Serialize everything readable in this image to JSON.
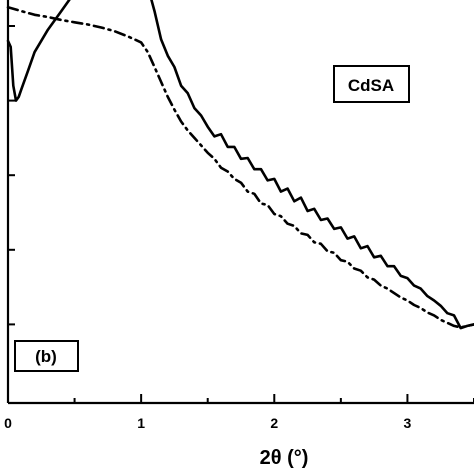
{
  "chart_data": {
    "type": "line",
    "xlabel": "2θ (°)",
    "ylabel": "",
    "xlim": [
      0,
      3.5
    ],
    "y_log": true,
    "ylim_decades": [
      0,
      5
    ],
    "x_ticks": [
      0,
      1,
      2,
      3
    ],
    "x_tick_labels": [
      "0",
      "1",
      "2",
      "3"
    ],
    "grid": false,
    "annotations": {
      "sample": "CdSA",
      "panel": "(b)"
    },
    "series": [
      {
        "style": "solid",
        "x": [
          0.0,
          0.02,
          0.04,
          0.06,
          0.08,
          0.1,
          0.15,
          0.2,
          0.3,
          0.4,
          0.5,
          0.6,
          0.7,
          0.8,
          0.85,
          0.9,
          0.95,
          1.0,
          1.05,
          1.1,
          1.15,
          1.2,
          1.25,
          1.3,
          1.35,
          1.4,
          1.45,
          1.5,
          1.55,
          1.6,
          1.65,
          1.7,
          1.75,
          1.8,
          1.85,
          1.9,
          1.95,
          2.0,
          2.05,
          2.1,
          2.15,
          2.2,
          2.25,
          2.3,
          2.35,
          2.4,
          2.45,
          2.5,
          2.55,
          2.6,
          2.65,
          2.7,
          2.75,
          2.8,
          2.85,
          2.9,
          2.95,
          3.0,
          3.05,
          3.1,
          3.15,
          3.2,
          3.25,
          3.3,
          3.35,
          3.4,
          3.45,
          3.5
        ],
        "y": [
          4.8,
          4.72,
          4.2,
          4.0,
          4.05,
          4.15,
          4.4,
          4.65,
          4.95,
          5.2,
          5.45,
          5.62,
          5.75,
          5.82,
          5.83,
          5.83,
          5.82,
          5.72,
          5.53,
          5.2,
          4.82,
          4.6,
          4.45,
          4.2,
          4.1,
          3.9,
          3.8,
          3.65,
          3.52,
          3.55,
          3.38,
          3.38,
          3.22,
          3.23,
          3.08,
          3.08,
          2.93,
          2.95,
          2.78,
          2.82,
          2.65,
          2.7,
          2.52,
          2.55,
          2.4,
          2.42,
          2.28,
          2.3,
          2.15,
          2.18,
          2.02,
          2.05,
          1.9,
          1.92,
          1.78,
          1.78,
          1.65,
          1.62,
          1.52,
          1.48,
          1.38,
          1.32,
          1.25,
          1.15,
          1.12,
          0.95,
          0.98,
          1.0
        ]
      },
      {
        "style": "dash-dot",
        "x": [
          0.0,
          0.1,
          0.2,
          0.3,
          0.4,
          0.5,
          0.6,
          0.7,
          0.8,
          0.9,
          0.95,
          1.0,
          1.05,
          1.1,
          1.15,
          1.2,
          1.25,
          1.3,
          1.35,
          1.4,
          1.45,
          1.5,
          1.55,
          1.6,
          1.65,
          1.7,
          1.75,
          1.8,
          1.85,
          1.9,
          1.95,
          2.0,
          2.05,
          2.1,
          2.15,
          2.2,
          2.25,
          2.3,
          2.35,
          2.4,
          2.45,
          2.5,
          2.55,
          2.6,
          2.65,
          2.7,
          2.75,
          2.8,
          2.85,
          2.9,
          2.95,
          3.0,
          3.05,
          3.1,
          3.15,
          3.2,
          3.25,
          3.3,
          3.35,
          3.4,
          3.45,
          3.5
        ],
        "y": [
          5.25,
          5.2,
          5.15,
          5.12,
          5.08,
          5.05,
          5.02,
          4.98,
          4.93,
          4.86,
          4.82,
          4.78,
          4.65,
          4.45,
          4.25,
          4.05,
          3.88,
          3.72,
          3.6,
          3.5,
          3.4,
          3.3,
          3.22,
          3.1,
          3.05,
          2.95,
          2.9,
          2.78,
          2.75,
          2.62,
          2.6,
          2.48,
          2.45,
          2.35,
          2.32,
          2.22,
          2.2,
          2.1,
          2.08,
          1.98,
          1.96,
          1.86,
          1.84,
          1.75,
          1.72,
          1.63,
          1.6,
          1.52,
          1.48,
          1.42,
          1.36,
          1.32,
          1.26,
          1.22,
          1.16,
          1.12,
          1.06,
          1.02,
          0.98,
          0.96,
          0.98,
          1.0
        ]
      }
    ]
  }
}
